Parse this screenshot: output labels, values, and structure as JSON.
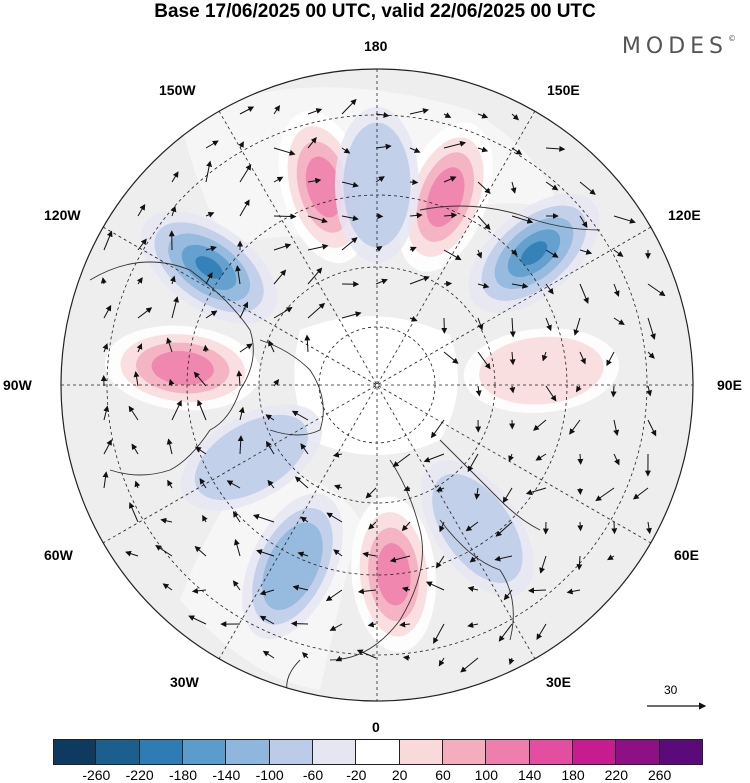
{
  "title": "Base 17/06/2025 00 UTC, valid 22/06/2025 00 UTC",
  "brand": "MODES",
  "brand_mark": "©",
  "map": {
    "projection": "north polar stereographic",
    "longitude_labels": {
      "top": "180",
      "top_right": "150E",
      "right_upper": "120E",
      "right": "90E",
      "right_lower": "60E",
      "bottom_right": "30E",
      "bottom": "0",
      "bottom_left": "30W",
      "left_lower": "60W",
      "left": "90W",
      "left_upper": "120W",
      "top_left": "150W"
    },
    "wind_reference_vector": "30",
    "anomaly_centers": [
      {
        "name": "north-pacific-high",
        "lon": "165W",
        "sign": "positive",
        "level": 140
      },
      {
        "name": "siberia-high",
        "lon": "160E",
        "sign": "positive",
        "level": 140
      },
      {
        "name": "chukchi-low",
        "lon": "180",
        "sign": "negative",
        "level": -60
      },
      {
        "name": "alaska-low",
        "lon": "125W",
        "sign": "negative",
        "level": -180
      },
      {
        "name": "east-siberia-low",
        "lon": "130E",
        "sign": "negative",
        "level": -180
      },
      {
        "name": "canada-high",
        "lon": "95W",
        "sign": "positive",
        "level": 140
      },
      {
        "name": "central-asia-high",
        "lon": "95E",
        "sign": "positive",
        "level": 60
      },
      {
        "name": "north-atlantic-low",
        "lon": "25W",
        "sign": "negative",
        "level": -100
      },
      {
        "name": "europe-high",
        "lon": "5E",
        "sign": "positive",
        "level": 140
      },
      {
        "name": "east-europe-low",
        "lon": "35E",
        "sign": "negative",
        "level": -60
      },
      {
        "name": "labrador-low",
        "lon": "60W",
        "sign": "negative",
        "level": -60
      }
    ]
  },
  "colorbar": {
    "ticks": [
      "-260",
      "-220",
      "-180",
      "-140",
      "-100",
      "-60",
      "-20",
      "20",
      "60",
      "100",
      "140",
      "180",
      "220",
      "260"
    ],
    "colors": [
      "#0d3a5e",
      "#1b5f8f",
      "#2d7cb4",
      "#5a9ccc",
      "#8fb6dd",
      "#bccbe7",
      "#e6e6f3",
      "#ffffff",
      "#f9d9da",
      "#f3adbd",
      "#ee7fac",
      "#e34ea0",
      "#c71b90",
      "#8f0f87",
      "#5b0a7a"
    ]
  }
}
